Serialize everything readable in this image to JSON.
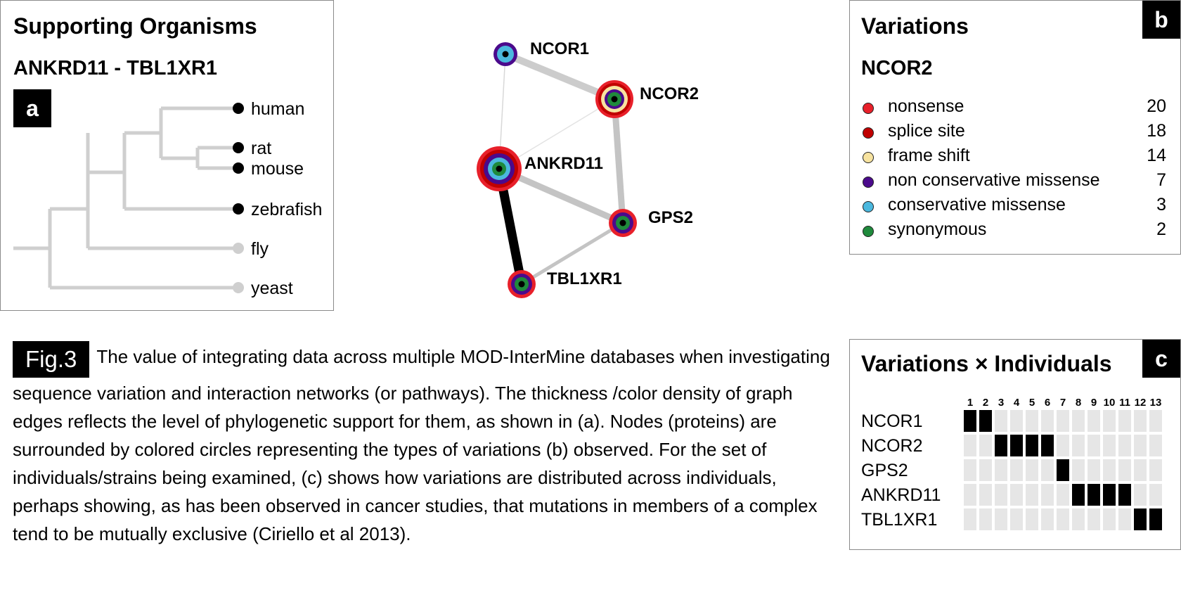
{
  "panel_a": {
    "title": "Supporting Organisms",
    "subtitle": "ANKRD11 - TBL1XR1",
    "badge": "a",
    "leaves": [
      {
        "name": "human",
        "supported": true
      },
      {
        "name": "rat",
        "supported": true
      },
      {
        "name": "mouse",
        "supported": true
      },
      {
        "name": "zebrafish",
        "supported": true
      },
      {
        "name": "fly",
        "supported": false
      },
      {
        "name": "yeast",
        "supported": false
      }
    ]
  },
  "network": {
    "nodes": [
      "NCOR1",
      "NCOR2",
      "ANKRD11",
      "GPS2",
      "TBL1XR1"
    ]
  },
  "panel_b": {
    "title": "Variations",
    "subtitle": "NCOR2",
    "badge": "b",
    "items": [
      {
        "label": "nonsense",
        "count": "20",
        "color": "#e8202a"
      },
      {
        "label": "splice site",
        "count": "18",
        "color": "#c00000"
      },
      {
        "label": "frame shift",
        "count": "14",
        "color": "#f7e3a0"
      },
      {
        "label": "non conservative missense",
        "count": "7",
        "color": "#4b0a8c"
      },
      {
        "label": "conservative missense",
        "count": "3",
        "color": "#4bb8de"
      },
      {
        "label": "synonymous",
        "count": "2",
        "color": "#1f8a3c"
      }
    ]
  },
  "panel_c": {
    "title": "Variations × Individuals",
    "badge": "c",
    "columns": [
      "1",
      "2",
      "3",
      "4",
      "5",
      "6",
      "7",
      "8",
      "9",
      "10",
      "11",
      "12",
      "13"
    ],
    "rows": [
      {
        "label": "NCOR1",
        "cells": [
          1,
          1,
          0,
          0,
          0,
          0,
          0,
          0,
          0,
          0,
          0,
          0,
          0
        ]
      },
      {
        "label": "NCOR2",
        "cells": [
          0,
          0,
          1,
          1,
          1,
          1,
          0,
          0,
          0,
          0,
          0,
          0,
          0
        ]
      },
      {
        "label": "GPS2",
        "cells": [
          0,
          0,
          0,
          0,
          0,
          0,
          1,
          0,
          0,
          0,
          0,
          0,
          0
        ]
      },
      {
        "label": "ANKRD11",
        "cells": [
          0,
          0,
          0,
          0,
          0,
          0,
          0,
          1,
          1,
          1,
          1,
          0,
          0
        ]
      },
      {
        "label": "TBL1XR1",
        "cells": [
          0,
          0,
          0,
          0,
          0,
          0,
          0,
          0,
          0,
          0,
          0,
          1,
          1
        ]
      }
    ]
  },
  "caption": {
    "label": "Fig.3",
    "text": "The value of integrating data across multiple MOD-InterMine databases when investigating sequence variation and interaction networks (or pathways). The thickness /color density of graph edges reflects the level of phylogenetic support for them, as shown in (a). Nodes (proteins) are surrounded by colored circles representing the types of variations (b) observed. For the set of individuals/strains being examined, (c) shows how variations are distributed across individuals, perhaps showing, as has been observed in cancer studies, that mutations in members of a complex tend to be mutually exclusive (Ciriello et al 2013)."
  }
}
